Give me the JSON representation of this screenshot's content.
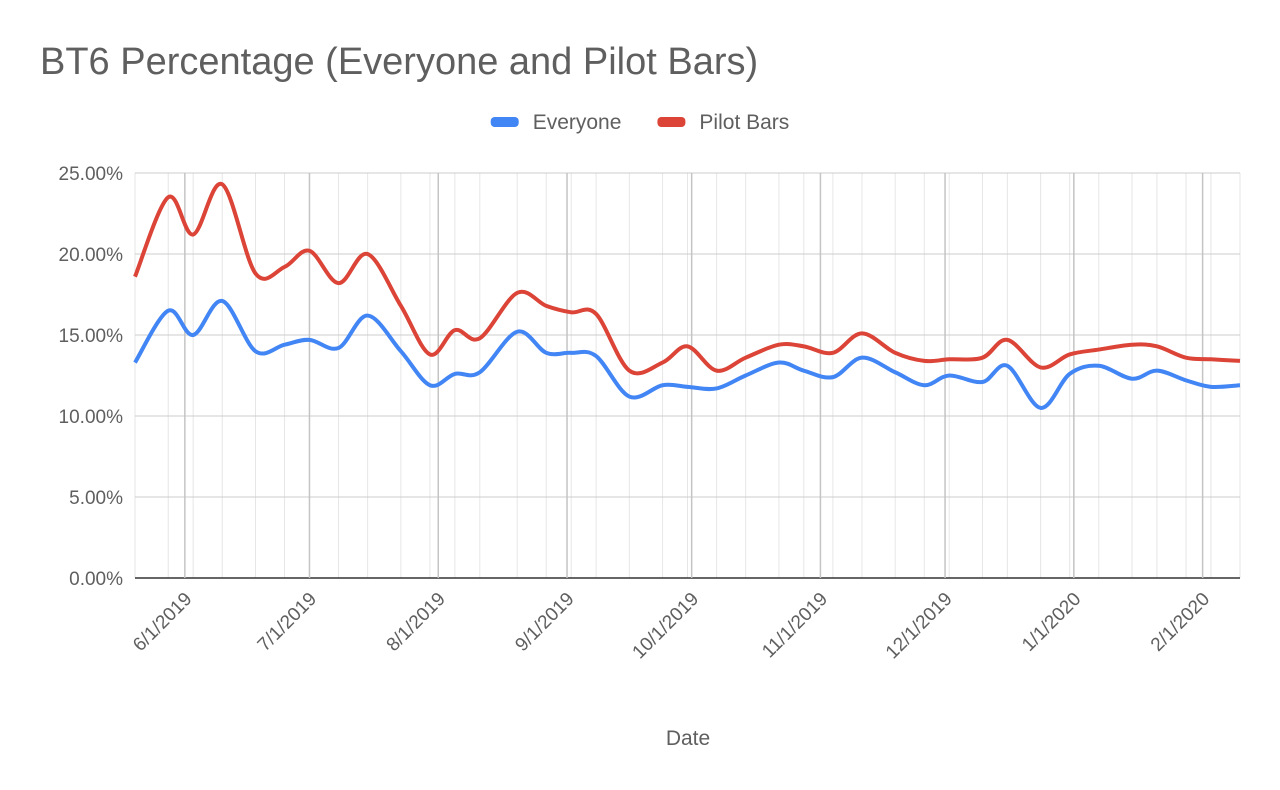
{
  "chart_data": {
    "type": "line",
    "title": "BT6 Percentage (Everyone and Pilot Bars)",
    "x_label": "Date",
    "x": [
      "2019-05-20",
      "2019-05-28",
      "2019-06-03",
      "2019-06-10",
      "2019-06-18",
      "2019-06-25",
      "2019-07-01",
      "2019-07-08",
      "2019-07-15",
      "2019-07-23",
      "2019-07-30",
      "2019-08-05",
      "2019-08-11",
      "2019-08-20",
      "2019-08-27",
      "2019-09-02",
      "2019-09-08",
      "2019-09-16",
      "2019-09-24",
      "2019-09-30",
      "2019-10-07",
      "2019-10-14",
      "2019-10-22",
      "2019-10-28",
      "2019-11-04",
      "2019-11-11",
      "2019-11-19",
      "2019-11-26",
      "2019-12-02",
      "2019-12-10",
      "2019-12-16",
      "2019-12-24",
      "2019-12-31",
      "2020-01-07",
      "2020-01-15",
      "2020-01-21",
      "2020-01-28",
      "2020-02-03",
      "2020-02-10"
    ],
    "series": [
      {
        "name": "Everyone",
        "color": "#4285f4",
        "values": [
          13.3,
          16.5,
          15.0,
          17.1,
          14.0,
          14.4,
          14.7,
          14.2,
          16.2,
          14.0,
          11.9,
          12.6,
          12.7,
          15.2,
          13.9,
          13.9,
          13.7,
          11.2,
          11.9,
          11.8,
          11.7,
          12.5,
          13.3,
          12.8,
          12.4,
          13.6,
          12.7,
          11.9,
          12.5,
          12.1,
          13.1,
          10.5,
          12.6,
          13.1,
          12.3,
          12.8,
          12.2,
          11.8,
          11.9
        ]
      },
      {
        "name": "Pilot Bars",
        "color": "#db4437",
        "values": [
          18.6,
          23.5,
          21.2,
          24.3,
          18.8,
          19.2,
          20.2,
          18.2,
          20.0,
          16.8,
          13.8,
          15.3,
          14.8,
          17.6,
          16.8,
          16.4,
          16.3,
          12.8,
          13.3,
          14.3,
          12.8,
          13.6,
          14.4,
          14.3,
          13.9,
          15.1,
          13.9,
          13.4,
          13.5,
          13.6,
          14.7,
          13.0,
          13.8,
          14.1,
          14.4,
          14.3,
          13.6,
          13.5,
          13.4
        ]
      }
    ],
    "xlim": [
      "2019-05-20",
      "2020-02-10"
    ],
    "xticks": [
      {
        "value": "2019-06-01",
        "label": "6/1/2019"
      },
      {
        "value": "2019-07-01",
        "label": "7/1/2019"
      },
      {
        "value": "2019-08-01",
        "label": "8/1/2019"
      },
      {
        "value": "2019-09-01",
        "label": "9/1/2019"
      },
      {
        "value": "2019-10-01",
        "label": "10/1/2019"
      },
      {
        "value": "2019-11-01",
        "label": "11/1/2019"
      },
      {
        "value": "2019-12-01",
        "label": "12/1/2019"
      },
      {
        "value": "2020-01-01",
        "label": "1/1/2020"
      },
      {
        "value": "2020-02-01",
        "label": "2/1/2020"
      }
    ],
    "ylim": [
      0,
      25
    ],
    "yticks": [
      {
        "value": 0,
        "label": "0.00%"
      },
      {
        "value": 5,
        "label": "5.00%"
      },
      {
        "value": 10,
        "label": "10.00%"
      },
      {
        "value": 15,
        "label": "15.00%"
      },
      {
        "value": 20,
        "label": "20.00%"
      },
      {
        "value": 25,
        "label": "25.00%"
      }
    ],
    "grid": true,
    "legend": "top"
  }
}
